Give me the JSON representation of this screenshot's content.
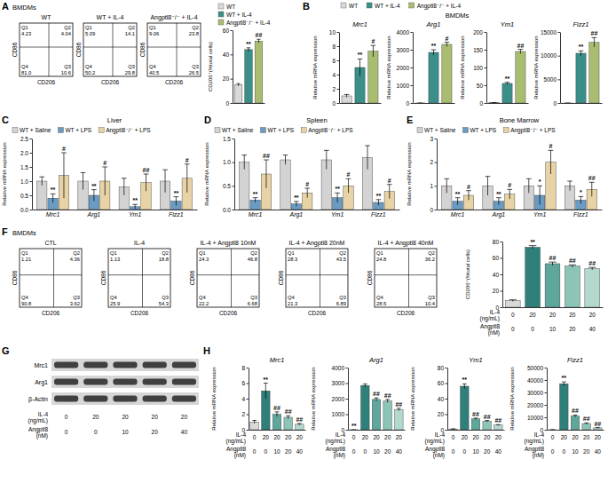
{
  "panels": [
    {
      "letter": "A",
      "subtitle": "BMDMs"
    },
    {
      "letter": "B",
      "subtitle": "BMDMs"
    },
    {
      "letter": "C"
    },
    {
      "letter": "D"
    },
    {
      "letter": "E"
    },
    {
      "letter": "F",
      "subtitle": "BMDMs"
    },
    {
      "letter": "G"
    },
    {
      "letter": "H"
    }
  ],
  "legends": [
    [
      {
        "name": "WT",
        "color": "#d9d9d9"
      },
      {
        "name": "WT + IL-4",
        "color": "#3b8f89"
      },
      {
        "name": "Angptl8⁻/⁻ + IL-4",
        "color": "#a9bd71"
      }
    ],
    [
      {
        "name": "WT",
        "color": "#d9d9d9"
      },
      {
        "name": "WT + IL-4",
        "color": "#3b8f89"
      },
      {
        "name": "Angptl8⁻/⁻ + IL-4",
        "color": "#a9bd71"
      }
    ]
  ],
  "flow_axes": {
    "x_label": "CD206",
    "y_label": "CD86"
  },
  "flow_plots": [
    {
      "title": "WT",
      "quadrants": [
        {
          "name": "Q1",
          "value": 4.23
        },
        {
          "name": "Q2",
          "value": 4.04
        },
        {
          "name": "Q3",
          "value": 10.6
        },
        {
          "name": "Q4",
          "value": 81,
          "label": "81.0"
        }
      ]
    },
    {
      "title": "WT + IL-4",
      "quadrants": [
        {
          "name": "Q1",
          "value": 5.09
        },
        {
          "name": "Q2",
          "value": 14.1
        },
        {
          "name": "Q3",
          "value": 29.8
        },
        {
          "name": "Q4",
          "value": 50.2
        }
      ]
    },
    {
      "title": "Angptl8⁻/⁻ + IL-4",
      "quadrants": [
        {
          "name": "Q1",
          "value": 9.06
        },
        {
          "name": "Q2",
          "value": 23.8
        },
        {
          "name": "Q3",
          "value": 26.5
        },
        {
          "name": "Q4",
          "value": 40.5
        }
      ]
    },
    {
      "title": "CTL",
      "quadrants": [
        {
          "name": "Q1",
          "value": 1.21
        },
        {
          "name": "Q2",
          "value": 4.36
        },
        {
          "name": "Q3",
          "value": 3.62
        },
        {
          "name": "Q4",
          "value": 90.8
        }
      ]
    },
    {
      "title": "IL-4",
      "quadrants": [
        {
          "name": "Q1",
          "value": 1.13
        },
        {
          "name": "Q2",
          "value": 18.8
        },
        {
          "name": "Q3",
          "value": 54.3
        },
        {
          "name": "Q4",
          "value": 25.9
        }
      ]
    },
    {
      "title": "IL-4 + Angptl8 10nM",
      "quadrants": [
        {
          "name": "Q1",
          "value": 24.3
        },
        {
          "name": "Q2",
          "value": 46.8
        },
        {
          "name": "Q3",
          "value": 6.68
        },
        {
          "name": "Q4",
          "value": 22.2
        }
      ]
    },
    {
      "title": "IL-4 + Angptl8 20nM",
      "quadrants": [
        {
          "name": "Q1",
          "value": 28.3
        },
        {
          "name": "Q2",
          "value": 43.5
        },
        {
          "name": "Q3",
          "value": 6.89
        },
        {
          "name": "Q4",
          "value": 21.3
        }
      ]
    },
    {
      "title": "IL-4 + Angptl8 40nM",
      "quadrants": [
        {
          "name": "Q1",
          "value": 24.8
        },
        {
          "name": "Q2",
          "value": 36.2
        },
        {
          "name": "Q3",
          "value": 10.4
        },
        {
          "name": "Q4",
          "value": 28.5
        }
      ]
    }
  ],
  "blot": {
    "rows": [
      "Mrc1",
      "Arg1",
      "β-Actin"
    ],
    "x_table": [
      {
        "label": "IL-4 (ng/mL)",
        "values": [
          0,
          20,
          20,
          20,
          20
        ]
      },
      {
        "label": "Angptl8 (nM)",
        "values": [
          0,
          0,
          10,
          20,
          40
        ]
      }
    ]
  },
  "chart_data": [
    {
      "type": "bar",
      "y_label": "CD206⁺(%total cells)",
      "categories": [
        null,
        null,
        null
      ],
      "values": [
        15,
        44,
        51
      ],
      "errors": [
        1,
        1.5,
        1.5
      ],
      "colors": [
        "#d9d9d9",
        "#3b8f89",
        "#a9bd71"
      ],
      "annotations": [
        null,
        "**",
        "##"
      ],
      "ylim": [
        0,
        60
      ],
      "yticks": [
        0,
        20,
        40,
        60
      ],
      "tick_labels": "y"
    },
    {
      "type": "bar",
      "title": "Mrc1",
      "y_label": "Relative mRNA expression",
      "categories": [
        null,
        null,
        null
      ],
      "values": [
        1,
        5,
        7.3
      ],
      "errors": [
        0.2,
        1.2,
        0.8
      ],
      "colors": [
        "#d9d9d9",
        "#3b8f89",
        "#a9bd71"
      ],
      "annotations": [
        null,
        "**",
        "#"
      ],
      "ylim": [
        0,
        10
      ],
      "yticks": [
        0,
        2,
        4,
        6,
        8,
        10
      ],
      "tick_labels": "y"
    },
    {
      "type": "bar",
      "title": "Arg1",
      "y_label": "Relative mRNA expression",
      "categories": [
        null,
        null,
        null
      ],
      "values": [
        1,
        2850,
        3300
      ],
      "errors": [
        1,
        150,
        120
      ],
      "colors": [
        "#d9d9d9",
        "#3b8f89",
        "#a9bd71"
      ],
      "annotations": [
        null,
        "**",
        "#"
      ],
      "ylim": [
        0,
        4000
      ],
      "yticks": [
        0,
        1000,
        2000,
        3000,
        4000
      ],
      "tick_labels": "y"
    },
    {
      "type": "bar",
      "title": "Ym1",
      "y_label": "Relative mRNA expression",
      "categories": [
        null,
        null,
        null
      ],
      "values": [
        1,
        55,
        145
      ],
      "errors": [
        0.2,
        3,
        6
      ],
      "colors": [
        "#d9d9d9",
        "#3b8f89",
        "#a9bd71"
      ],
      "annotations": [
        null,
        "**",
        "##"
      ],
      "ylim": [
        0,
        200
      ],
      "yticks": [
        0,
        50,
        100,
        150,
        200
      ],
      "tick_labels": "y"
    },
    {
      "type": "bar",
      "title": "Fizz1",
      "y_label": "Relative mRNA expression",
      "categories": [
        null,
        null,
        null
      ],
      "values": [
        1,
        10500,
        12800
      ],
      "errors": [
        1,
        500,
        1000
      ],
      "colors": [
        "#d9d9d9",
        "#3b8f89",
        "#a9bd71"
      ],
      "annotations": [
        null,
        "**",
        "##"
      ],
      "ylim": [
        0,
        15000
      ],
      "yticks": [
        0,
        5000,
        10000,
        15000
      ],
      "tick_labels": "y"
    },
    {
      "type": "bar",
      "title": "Liver",
      "y_label": "Relative mRNA expression",
      "categories": [
        "Mrc1",
        "Arg1",
        "Ym1",
        "Fizz1"
      ],
      "series": [
        {
          "name": "WT + Saline",
          "color": "#d3d3d3",
          "values": [
            1,
            1,
            0.8,
            1
          ],
          "errors": [
            0.15,
            0.3,
            0.3,
            0.4
          ]
        },
        {
          "name": "WT + LPS",
          "color": "#6a9bc3",
          "values": [
            0.4,
            0.5,
            0.1,
            0.3
          ],
          "errors": [
            0.15,
            0.2,
            0.08,
            0.15
          ],
          "annotations": [
            "**",
            "**",
            "**",
            "**"
          ]
        },
        {
          "name": "Angptl8⁻/⁻ + LPS",
          "color": "#e7d3a6",
          "values": [
            1.2,
            1,
            0.95,
            1.1
          ],
          "errors": [
            0.8,
            0.5,
            0.3,
            0.5
          ],
          "annotations": [
            "#",
            "#",
            "##",
            "#"
          ]
        }
      ],
      "ylim": [
        0,
        2.5
      ],
      "yticks": [
        {
          "value": 0,
          "label": "0.0"
        },
        0.5,
        {
          "value": 1,
          "label": "1.0"
        },
        1.5,
        {
          "value": 2,
          "label": "2.0"
        },
        2.5
      ],
      "legend": "top"
    },
    {
      "type": "bar",
      "title": "Spleen",
      "y_label": "Relative mRNA expression",
      "categories": [
        "Mrc1",
        "Arg1",
        "Ym1",
        "Fizz1"
      ],
      "series": [
        {
          "name": "WT + Saline",
          "color": "#d3d3d3",
          "values": [
            1,
            1.05,
            1.05,
            1.1
          ],
          "errors": [
            0.15,
            0.1,
            0.2,
            0.25
          ]
        },
        {
          "name": "WT + LPS",
          "color": "#6a9bc3",
          "values": [
            0.2,
            0.12,
            0.25,
            0.15
          ],
          "errors": [
            0.05,
            0.05,
            0.1,
            0.06
          ],
          "annotations": [
            "**",
            "**",
            "**",
            "**"
          ]
        },
        {
          "name": "Angptl8⁻/⁻ + LPS",
          "color": "#e7d3a6",
          "values": [
            0.75,
            0.35,
            0.5,
            0.38
          ],
          "errors": [
            0.3,
            0.1,
            0.15,
            0.15
          ],
          "annotations": [
            "##",
            "#",
            "#",
            "#"
          ]
        }
      ],
      "ylim": [
        0,
        1.5
      ],
      "yticks": [
        {
          "value": 0,
          "label": "0.0"
        },
        0.5,
        {
          "value": 1,
          "label": "1.0"
        },
        1.5
      ],
      "legend": "top"
    },
    {
      "type": "bar",
      "title": "Bone Marrow",
      "y_label": "Relative mRNA expression",
      "categories": [
        "Mrc1",
        "Arg1",
        "Ym1",
        "Fizz1"
      ],
      "series": [
        {
          "name": "WT + Saline",
          "color": "#d3d3d3",
          "values": [
            1,
            1,
            1,
            1
          ],
          "errors": [
            0.3,
            0.4,
            0.3,
            0.2
          ]
        },
        {
          "name": "WT + LPS",
          "color": "#6a9bc3",
          "values": [
            0.35,
            0.35,
            0.6,
            0.4
          ],
          "errors": [
            0.15,
            0.15,
            0.4,
            0.15
          ],
          "annotations": [
            "**",
            "**",
            "*",
            "*"
          ]
        },
        {
          "name": "Angptl8⁻/⁻ + LPS",
          "color": "#e7d3a6",
          "values": [
            0.6,
            0.65,
            2,
            0.85
          ],
          "errors": [
            0.2,
            0.2,
            0.5,
            0.3
          ],
          "annotations": [
            "#",
            "#",
            "#",
            "##"
          ]
        }
      ],
      "ylim": [
        0,
        3
      ],
      "yticks": [
        0,
        1,
        2,
        3
      ],
      "legend": "top"
    },
    {
      "type": "bar",
      "y_label": "CD206⁺(%total cells)",
      "categories": [
        null,
        null,
        null,
        null,
        null
      ],
      "values": [
        8,
        73,
        53,
        50,
        47
      ],
      "errors": [
        1,
        2,
        2,
        1.5,
        1.5
      ],
      "colors": [
        "#d9d9d9",
        "#2f7f7a",
        "#5fa79b",
        "#8cc4b8",
        "#b3d9cf"
      ],
      "annotations": [
        null,
        "**",
        "##",
        "##",
        "##"
      ],
      "ylim": [
        0,
        80
      ],
      "yticks": [
        0,
        20,
        40,
        60,
        80
      ],
      "tick_labels": "y",
      "x_table": [
        {
          "label": "IL-4 (ng/mL)",
          "values": [
            0,
            20,
            20,
            20,
            20
          ]
        },
        {
          "label": "Angptl8 (nM)",
          "values": [
            0,
            0,
            10,
            20,
            40
          ]
        }
      ]
    },
    {
      "type": "bar",
      "title": "Mrc1",
      "y_label": "Relative mRNA expression",
      "categories": [
        null,
        null,
        null,
        null,
        null
      ],
      "values": [
        1,
        5,
        2,
        1.6,
        0.7
      ],
      "errors": [
        0.2,
        1,
        0.3,
        0.2,
        0.1
      ],
      "colors": [
        "#d9d9d9",
        "#2f7f7a",
        "#5fa79b",
        "#8cc4b8",
        "#b3d9cf"
      ],
      "annotations": [
        null,
        "**",
        "##",
        "##",
        "##"
      ],
      "ylim": [
        0,
        8
      ],
      "yticks": [
        0,
        2,
        4,
        6,
        8
      ],
      "tick_labels": "y",
      "x_table": [
        {
          "label": "IL-4 (ng/mL)",
          "values": [
            0,
            20,
            20,
            20,
            20
          ]
        },
        {
          "label": "Angptl8 (nM)",
          "values": [
            0,
            0,
            10,
            20,
            40
          ]
        }
      ]
    },
    {
      "type": "bar",
      "title": "Arg1",
      "y_label": "Relative mRNA expression",
      "categories": [
        null,
        null,
        null,
        null,
        null
      ],
      "values": [
        1,
        2850,
        1950,
        1850,
        1300
      ],
      "errors": [
        1,
        100,
        100,
        100,
        80
      ],
      "colors": [
        "#d9d9d9",
        "#2f7f7a",
        "#5fa79b",
        "#8cc4b8",
        "#b3d9cf"
      ],
      "annotations": [
        "**",
        null,
        "##",
        "##",
        "##"
      ],
      "ylim": [
        0,
        4000
      ],
      "yticks": [
        0,
        1000,
        2000,
        3000,
        4000
      ],
      "tick_labels": "y",
      "x_table": [
        {
          "label": "IL-4 (ng/mL)",
          "values": [
            0,
            20,
            20,
            20,
            20
          ]
        },
        {
          "label": "Angptl8 (nM)",
          "values": [
            0,
            0,
            10,
            20,
            40
          ]
        }
      ]
    },
    {
      "type": "bar",
      "title": "Ym1",
      "y_label": "Relative mRNA expression",
      "categories": [
        null,
        null,
        null,
        null,
        null
      ],
      "values": [
        1,
        56,
        14,
        11,
        6
      ],
      "errors": [
        0.2,
        3,
        1,
        1,
        0.5
      ],
      "colors": [
        "#d9d9d9",
        "#2f7f7a",
        "#5fa79b",
        "#8cc4b8",
        "#b3d9cf"
      ],
      "annotations": [
        null,
        "**",
        "##",
        "##",
        "##"
      ],
      "ylim": [
        0,
        80
      ],
      "yticks": [
        0,
        20,
        40,
        60,
        80
      ],
      "tick_labels": "y",
      "x_table": [
        {
          "label": "IL-4 (ng/mL)",
          "values": [
            0,
            20,
            20,
            20,
            20
          ]
        },
        {
          "label": "Angptl8 (nM)",
          "values": [
            0,
            0,
            10,
            20,
            40
          ]
        }
      ]
    },
    {
      "type": "bar",
      "title": "Fizz1",
      "y_label": "Relative mRNA expression",
      "categories": [
        null,
        null,
        null,
        null,
        null
      ],
      "values": [
        1,
        37000,
        11000,
        5000,
        1500
      ],
      "errors": [
        100,
        1500,
        800,
        500,
        200
      ],
      "colors": [
        "#d9d9d9",
        "#2f7f7a",
        "#5fa79b",
        "#8cc4b8",
        "#b3d9cf"
      ],
      "annotations": [
        null,
        "**",
        "##",
        "##",
        "##"
      ],
      "ylim": [
        0,
        50000
      ],
      "yticks": [
        0,
        10000,
        20000,
        30000,
        40000,
        50000
      ],
      "tick_labels": "y",
      "x_table": [
        {
          "label": "IL-4 (ng/mL)",
          "values": [
            0,
            20,
            20,
            20,
            20
          ]
        },
        {
          "label": "Angptl8 (nM)",
          "values": [
            0,
            0,
            10,
            20,
            40
          ]
        }
      ]
    }
  ]
}
